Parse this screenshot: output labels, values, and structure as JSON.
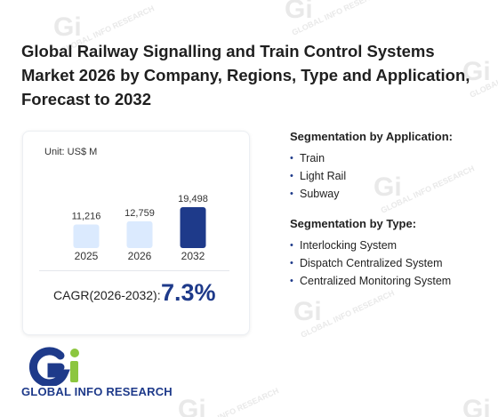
{
  "title": "Global Railway Signalling and Train Control Systems Market 2026 by Company, Regions, Type and Application, Forecast to 2032",
  "watermark_text": "GLOBAL INFO RESEARCH",
  "chart": {
    "unit_label": "Unit: US$ M",
    "cagr_label": "CAGR(2026-2032):",
    "cagr_value": "7.3%"
  },
  "chart_data": {
    "type": "bar",
    "categories": [
      "2025",
      "2026",
      "2032"
    ],
    "values": [
      11216,
      12759,
      19498
    ],
    "value_labels": [
      "11,216",
      "12,759",
      "19,498"
    ],
    "colors": [
      "#dbeafe",
      "#dbeafe",
      "#1e3a8a"
    ],
    "ylabel": "Unit: US$ M"
  },
  "segmentation_application": {
    "title": "Segmentation by Application:",
    "items": [
      "Train",
      "Light Rail",
      "Subway"
    ]
  },
  "segmentation_type": {
    "title": "Segmentation by Type:",
    "items": [
      "Interlocking System",
      "Dispatch Centralized System",
      "Centralized Monitoring System"
    ]
  },
  "logo": {
    "text": "GLOBAL INFO RESEARCH",
    "mark_letters": "Gi"
  },
  "colors": {
    "accent": "#1e3a8a",
    "light_bar": "#dbeafe",
    "logo_green": "#8cc63f"
  }
}
